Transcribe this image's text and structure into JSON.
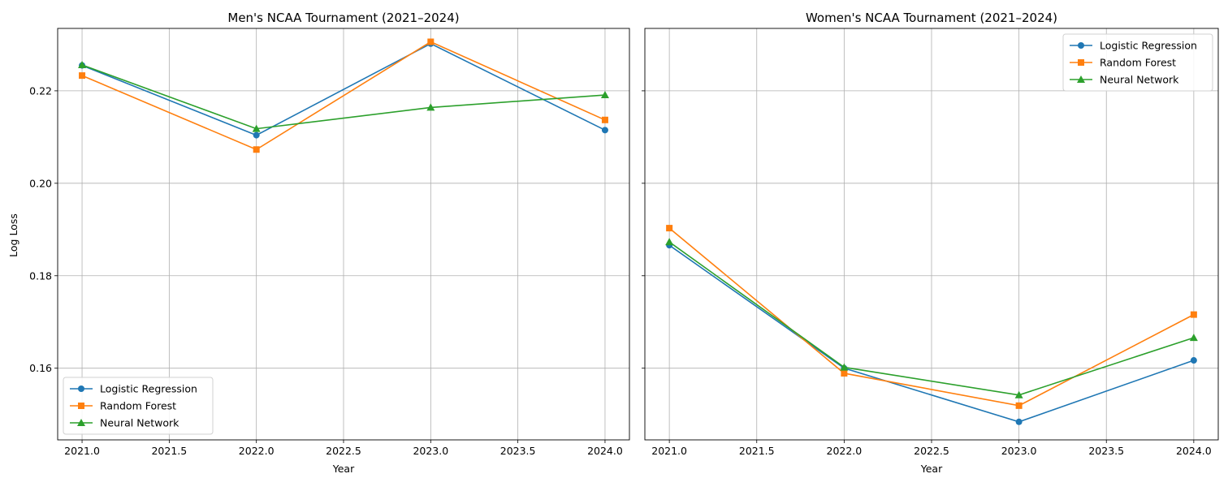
{
  "colors": {
    "logistic": "#1f77b4",
    "forest": "#ff7f0e",
    "neural": "#2ca02c",
    "grid": "#b0b0b0"
  },
  "shared_ylabel": "Log Loss",
  "chart_data": [
    {
      "type": "line",
      "title": "Men's NCAA Tournament (2021–2024)",
      "xlabel": "Year",
      "ylabel": "Log Loss",
      "x": [
        2021,
        2022,
        2023,
        2024
      ],
      "xlim": [
        2020.86,
        2024.14
      ],
      "ylim": [
        0.1445,
        0.2335
      ],
      "xticks": [
        "2021.0",
        "2021.5",
        "2022.0",
        "2022.5",
        "2023.0",
        "2023.5",
        "2024.0"
      ],
      "yticks": [
        "0.16",
        "0.18",
        "0.20",
        "0.22"
      ],
      "grid": true,
      "legend": "lower-left",
      "series": [
        {
          "name": "Logistic Regression",
          "marker": "circle",
          "values": [
            0.2255,
            0.2104,
            0.2302,
            0.2115
          ]
        },
        {
          "name": "Random Forest",
          "marker": "square",
          "values": [
            0.2233,
            0.2073,
            0.2306,
            0.2137
          ]
        },
        {
          "name": "Neural Network",
          "marker": "triangle",
          "values": [
            0.2256,
            0.2118,
            0.2164,
            0.2191
          ]
        }
      ]
    },
    {
      "type": "line",
      "title": "Women's NCAA Tournament (2021–2024)",
      "xlabel": "Year",
      "ylabel": "",
      "x": [
        2021,
        2022,
        2023,
        2024
      ],
      "xlim": [
        2020.86,
        2024.14
      ],
      "ylim": [
        0.1445,
        0.2335
      ],
      "xticks": [
        "2021.0",
        "2021.5",
        "2022.0",
        "2022.5",
        "2023.0",
        "2023.5",
        "2024.0"
      ],
      "yticks": [
        "0.16",
        "0.18",
        "0.20",
        "0.22"
      ],
      "grid": true,
      "legend": "upper-right",
      "series": [
        {
          "name": "Logistic Regression",
          "marker": "circle",
          "values": [
            0.1866,
            0.16,
            0.1484,
            0.1617
          ]
        },
        {
          "name": "Random Forest",
          "marker": "square",
          "values": [
            0.1903,
            0.1589,
            0.1519,
            0.1716
          ]
        },
        {
          "name": "Neural Network",
          "marker": "triangle",
          "values": [
            0.1873,
            0.1602,
            0.1542,
            0.1666
          ]
        }
      ]
    }
  ]
}
